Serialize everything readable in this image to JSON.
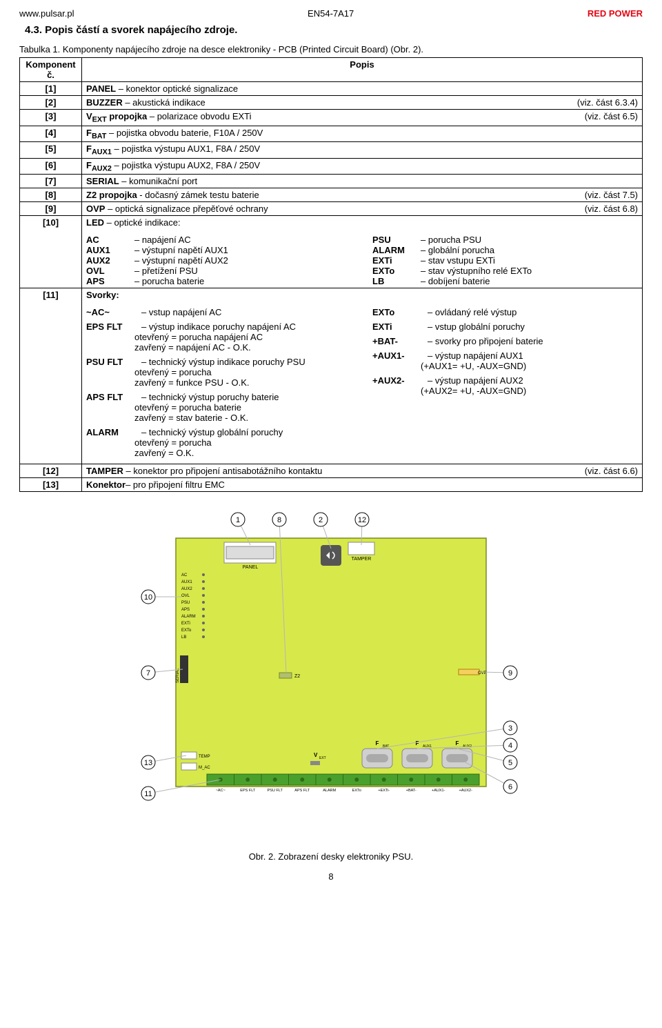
{
  "header": {
    "left": "www.pulsar.pl",
    "center": "EN54-7A17",
    "right": "RED POWER"
  },
  "title": "4.3. Popis částí a svorek napájecího zdroje.",
  "table_caption": "Tabulka 1. Komponenty napájecího zdroje na desce elektroniky - PCB (Printed Circuit Board) (Obr. 2).",
  "col_head1": "Komponent č.",
  "col_head2": "Popis",
  "rows": [
    {
      "k": "[1]",
      "label": "PANEL",
      "desc": "– konektor optické signalizace",
      "ref": ""
    },
    {
      "k": "[2]",
      "label": "BUZZER",
      "desc": "– akustická indikace",
      "ref": "(viz. část 6.3.4)"
    },
    {
      "k": "[3]",
      "label_html": "V<sub>EXT</sub> propojka",
      "desc": "– polarizace obvodu EXTi",
      "ref": "(viz. část 6.5)"
    },
    {
      "k": "[4]",
      "label_html": "F<sub>BAT</sub>",
      "desc": "– pojistka obvodu baterie, F10A / 250V",
      "ref": ""
    },
    {
      "k": "[5]",
      "label_html": "F<sub>AUX1</sub>",
      "desc": "– pojistka výstupu  AUX1, F8A / 250V",
      "ref": ""
    },
    {
      "k": "[6]",
      "label_html": "F<sub>AUX2</sub>",
      "desc": "– pojistka výstupu  AUX2, F8A / 250V",
      "ref": ""
    },
    {
      "k": "[7]",
      "label": "SERIAL",
      "desc": "– komunikační port",
      "ref": ""
    },
    {
      "k": "[8]",
      "label": "Z2  propojka",
      "desc": "- dočasný zámek testu baterie",
      "ref": "(viz. část 7.5)"
    },
    {
      "k": "[9]",
      "label": "OVP",
      "desc": "– optická signalizace přepěťové ochrany",
      "ref": "(viz. část 6.8)"
    }
  ],
  "row10": {
    "k": "[10]",
    "intro": "LED – optické indikace:",
    "left": [
      {
        "k": "AC",
        "v": "– napájení AC"
      },
      {
        "k": "AUX1",
        "v": "– výstupní napětí AUX1"
      },
      {
        "k": "AUX2",
        "v": "– výstupní napětí AUX2"
      },
      {
        "k": "OVL",
        "v": "– přetížení PSU"
      },
      {
        "k": "APS",
        "v": "– porucha baterie"
      }
    ],
    "right": [
      {
        "k": "PSU",
        "v": "– porucha PSU"
      },
      {
        "k": "ALARM",
        "v": "– globální porucha"
      },
      {
        "k": "EXTi",
        "v": "– stav vstupu EXTi"
      },
      {
        "k": "EXTo",
        "v": "– stav výstupního relé EXTo"
      },
      {
        "k": "LB",
        "v": "– dobíjení baterie"
      }
    ]
  },
  "row11": {
    "k": "[11]",
    "intro": "Svorky:",
    "left": [
      {
        "head": "~AC~",
        "lines": [
          "– vstup napájení AC"
        ]
      },
      {
        "head": "EPS  FLT",
        "lines": [
          "– výstup indikace poruchy napájení AC",
          "otevřený = porucha napájení AC",
          "zavřený = napájení AC  - O.K."
        ]
      },
      {
        "head": "PSU FLT",
        "lines": [
          "– technický výstup indikace poruchy PSU",
          "otevřený = porucha",
          "zavřený = funkce PSU - O.K."
        ]
      },
      {
        "head": "APS FLT",
        "lines": [
          "– technický výstup poruchy baterie",
          "otevřený = porucha baterie",
          "zavřený = stav baterie - O.K."
        ]
      },
      {
        "head": "ALARM",
        "lines": [
          "– technický výstup globální poruchy",
          "otevřený = porucha",
          "zavřený = O.K."
        ]
      }
    ],
    "right": [
      {
        "head": "EXTo",
        "lines": [
          "– ovládaný relé výstup"
        ]
      },
      {
        "head": "EXTi",
        "lines": [
          "– vstup globální poruchy"
        ]
      },
      {
        "head": "+BAT-",
        "lines": [
          "– svorky pro připojení baterie"
        ]
      },
      {
        "head": "+AUX1-",
        "lines": [
          "– výstup napájení AUX1",
          "(+AUX1= +U, -AUX=GND)"
        ]
      },
      {
        "head": "+AUX2-",
        "lines": [
          "– výstup napájení AUX2",
          "(+AUX2= +U, -AUX=GND)"
        ]
      }
    ]
  },
  "row12": {
    "k": "[12]",
    "text": "TAMPER – konektor pro připojení antisabotážního kontaktu",
    "ref": "(viz. část 6.6)"
  },
  "row13": {
    "k": "[13]",
    "text": "Konektor– pro připojení filtru EMC",
    "ref": ""
  },
  "figure": {
    "caption": "Obr. 2. Zobrazení desky elektroniky PSU.",
    "pcb_color": "#d7e84b",
    "pcb_border": "#7a8a1e",
    "callout_color": "#b5b5b5",
    "text_color": "#000000",
    "bg": "#ffffff",
    "led_labels": [
      "AC",
      "AUX1",
      "AUX2",
      "OVL",
      "PSU",
      "APS",
      "ALARM",
      "EXTi",
      "EXTo",
      "LB"
    ],
    "serial_label": "SERIAL",
    "panel_label": "PANEL",
    "tamper_label": "TAMPER",
    "z2_label": "Z2",
    "ovp_label": "OVP",
    "temp_label": "TEMP",
    "mac_label": "M_AC",
    "fuse_labels": [
      "F",
      "F",
      "F"
    ],
    "fuse_sub": [
      "BAT",
      "AUX1",
      "AUX2"
    ],
    "vext_label": "V",
    "vext_sub": "EXT",
    "terminal_labels": [
      "~AC~",
      "EPS FLT",
      "PSU FLT",
      "APS FLT",
      "ALARM",
      "EXTo",
      "+EXTi-",
      "+BAT-",
      "+AUX1-",
      "+AUX2-"
    ],
    "callouts": {
      "1": "1",
      "2": "2",
      "3": "3",
      "4": "4",
      "5": "5",
      "6": "6",
      "7": "7",
      "8": "8",
      "9": "9",
      "10": "10",
      "11": "11",
      "12": "12",
      "13": "13"
    }
  },
  "page_number": "8"
}
